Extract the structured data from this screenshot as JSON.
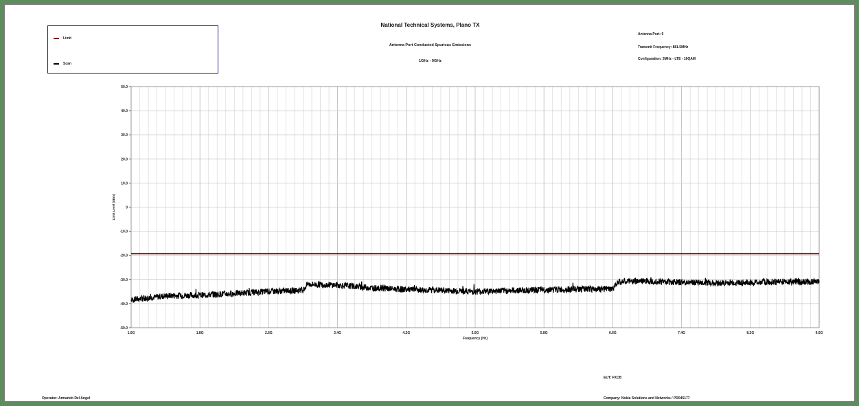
{
  "header": {
    "title": "National Technical Systems, Plano TX",
    "subtitle": "Antenna Port Conducted Spurious Emissions",
    "range": "1GHz - 9GHz"
  },
  "info": {
    "antenna_port": "Antenna Port: 5",
    "tx_freq": "Transmit Frequency: 881.5MHz",
    "configuration": "Configuration: 3MHz - LTE - 16QAM"
  },
  "footer": {
    "operator": "Operator: Armando Del Angel",
    "eut": "EUT: FXCB",
    "company": "Company: Nokia Solutions and Networks / PR045177"
  },
  "legend": {
    "items": [
      {
        "label": "Limit",
        "color": "#7a1010"
      },
      {
        "label": "Scan",
        "color": "#000000"
      }
    ]
  },
  "chart_data": {
    "type": "line",
    "xlabel": "Frequency (Hz)",
    "ylabel": "Limit Level (dBm)",
    "xlim": [
      1.0,
      9.0
    ],
    "ylim": [
      -50,
      50
    ],
    "xticks": [
      1.0,
      1.8,
      2.6,
      3.4,
      4.2,
      5.0,
      5.8,
      6.6,
      7.4,
      8.2,
      9.0
    ],
    "xtick_labels": [
      "1.0G",
      "1.8G",
      "2.6G",
      "3.4G",
      "4.2G",
      "5.0G",
      "5.8G",
      "6.6G",
      "7.4G",
      "8.2G",
      "9.0G"
    ],
    "yticks": [
      50,
      40,
      30,
      20,
      10,
      0,
      -10,
      -20,
      -30,
      -40,
      -50
    ],
    "ytick_labels": [
      "50.0",
      "40.0",
      "30.0",
      "20.0",
      "10.0",
      "0",
      "-10.0",
      "-20.0",
      "-30.0",
      "-40.0",
      "-50.0"
    ],
    "grid": true,
    "legend_position": "top-left",
    "series": [
      {
        "name": "Limit",
        "color": "#7a1010",
        "x": [
          1.0,
          9.0
        ],
        "y": [
          -19.3,
          -19.3
        ]
      },
      {
        "name": "Scan",
        "color": "#000000",
        "x": [
          1.0,
          1.4,
          1.8,
          2.2,
          2.6,
          3.0,
          3.05,
          3.4,
          3.8,
          4.2,
          4.6,
          5.0,
          5.4,
          5.8,
          6.2,
          6.6,
          6.65,
          7.0,
          7.4,
          7.8,
          8.2,
          8.6,
          9.0
        ],
        "y": [
          -38.5,
          -36.8,
          -36.5,
          -35.8,
          -35.0,
          -34.5,
          -32.0,
          -32.3,
          -33.5,
          -34.2,
          -34.5,
          -35.0,
          -34.6,
          -34.3,
          -34.0,
          -34.0,
          -31.0,
          -30.6,
          -31.2,
          -31.5,
          -31.3,
          -30.8,
          -31.0
        ]
      }
    ]
  }
}
